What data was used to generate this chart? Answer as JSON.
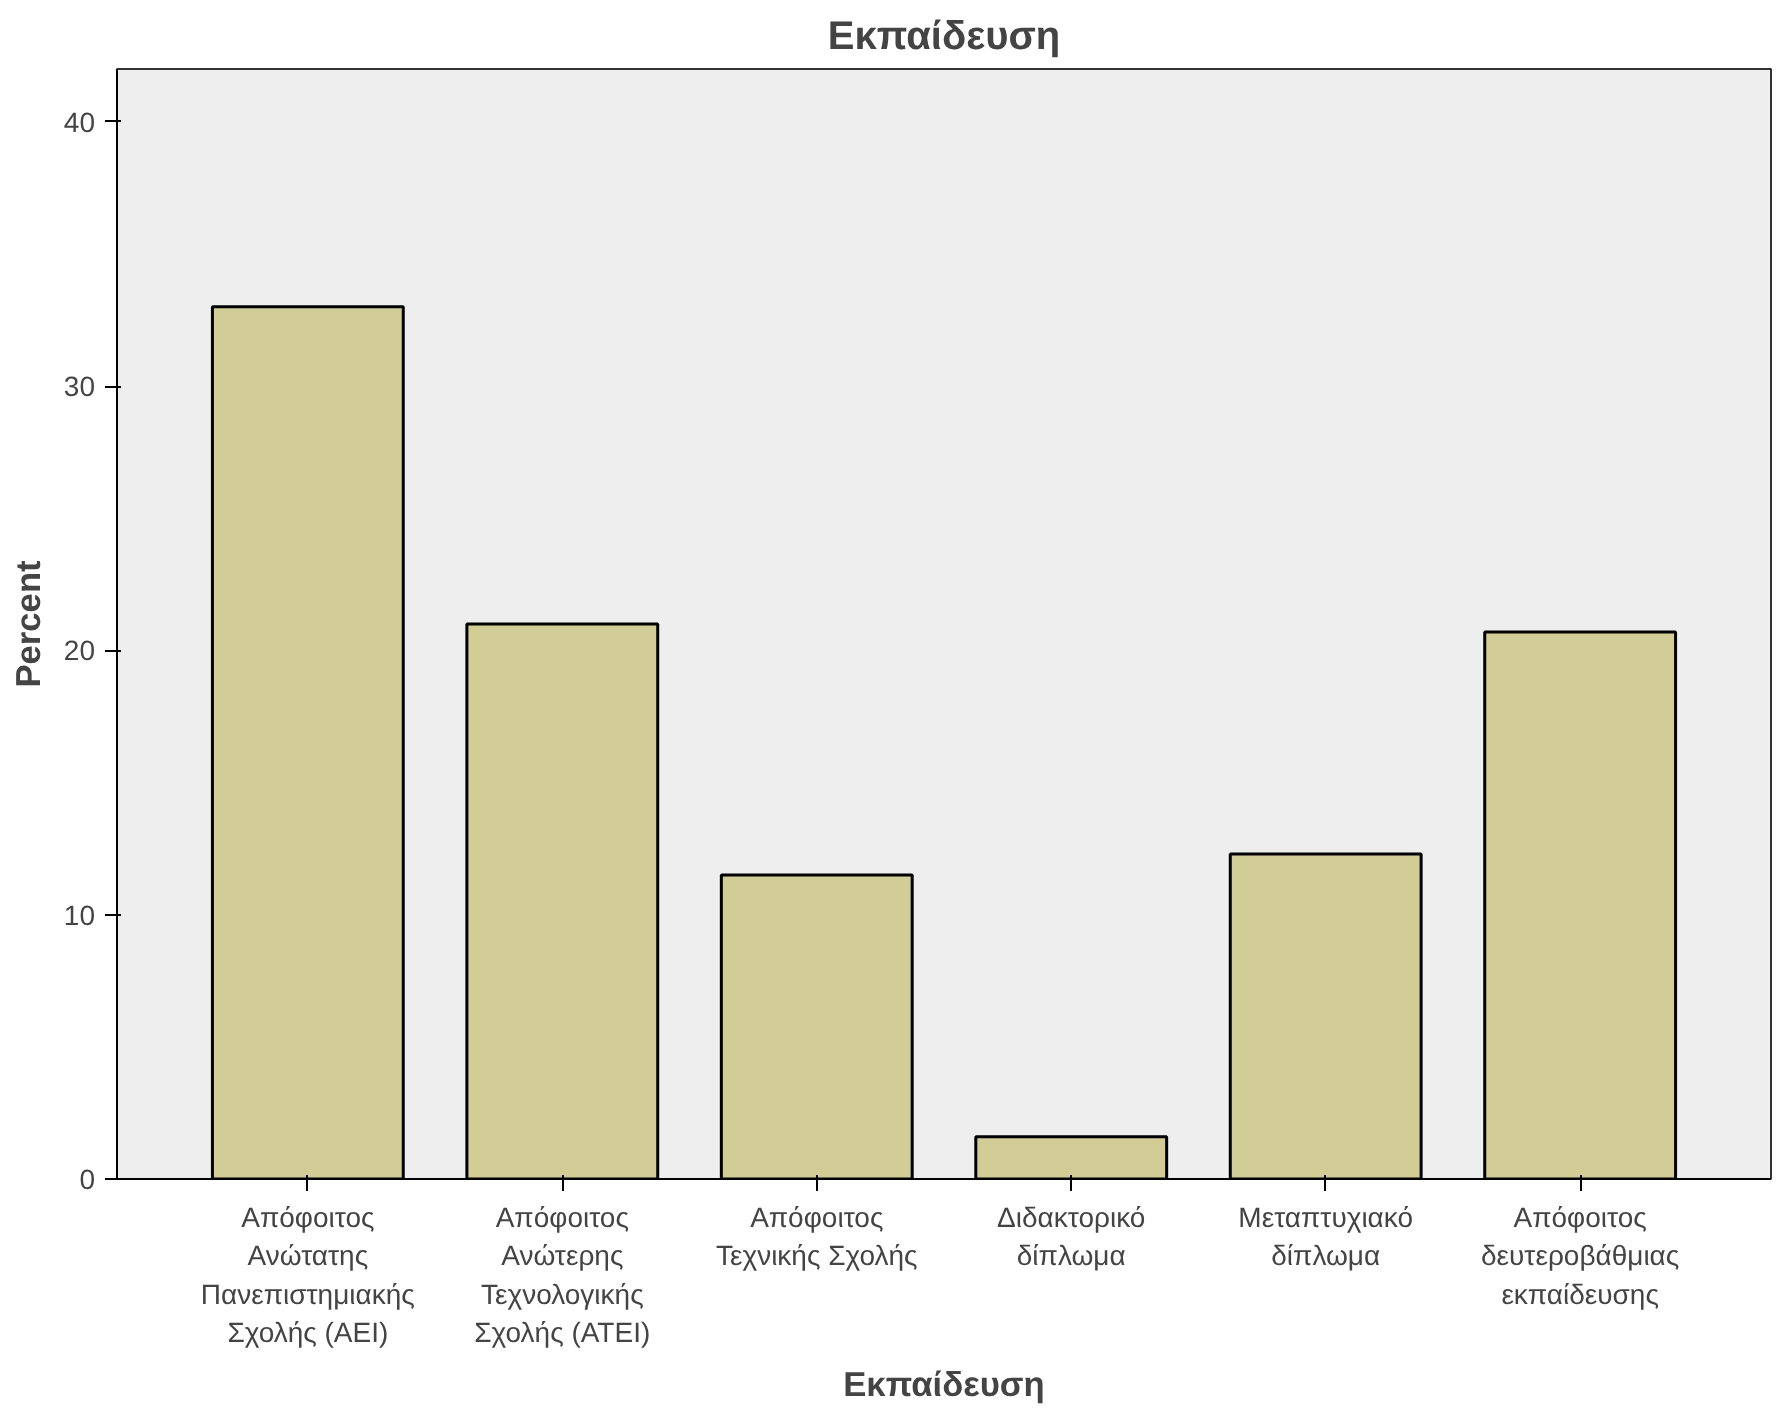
{
  "chart_data": {
    "type": "bar",
    "title": "Εκπαίδευση",
    "xlabel": "Εκπαίδευση",
    "ylabel": "Percent",
    "categories": [
      "Απόφοιτος Ανώτατης Πανεπιστημιακής Σχολής (ΑΕΙ)",
      "Απόφοιτος Ανώτερης Τεχνολογικής Σχολής (ΑΤΕΙ)",
      "Απόφοιτος Τεχνικής Σχολής",
      "Διδακτορικό δίπλωμα",
      "Μεταπτυχιακό δίπλωμα",
      "Απόφοιτος δευτεροβάθμιας εκπαίδευσης"
    ],
    "values": [
      33.0,
      21.0,
      11.5,
      1.6,
      12.3,
      20.7
    ],
    "color": "#d2cd96",
    "ylim": [
      0,
      42
    ],
    "yticks": [
      0,
      10,
      20,
      30,
      40
    ],
    "grid": false
  }
}
